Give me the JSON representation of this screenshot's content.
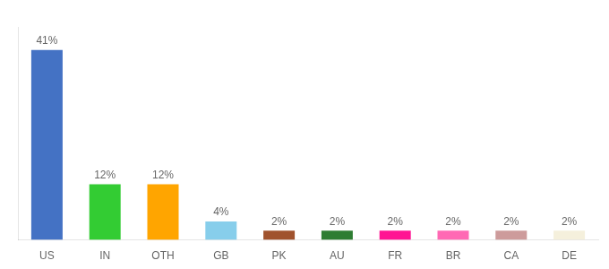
{
  "chart_data": {
    "type": "bar",
    "categories": [
      "US",
      "IN",
      "OTH",
      "GB",
      "PK",
      "AU",
      "FR",
      "BR",
      "CA",
      "DE"
    ],
    "values": [
      41,
      12,
      12,
      4,
      2,
      2,
      2,
      2,
      2,
      2
    ],
    "value_labels": [
      "41%",
      "12%",
      "12%",
      "4%",
      "2%",
      "2%",
      "2%",
      "2%",
      "2%",
      "2%"
    ],
    "colors": [
      "#4472C4",
      "#33CC33",
      "#FFA500",
      "#87CEEB",
      "#A0522D",
      "#2E7D32",
      "#FF1493",
      "#FF69B4",
      "#CD9B9B",
      "#F5F0DC"
    ],
    "ylim": [
      0,
      46
    ],
    "grid": false,
    "data_labels": true,
    "tick_labels": "x"
  }
}
